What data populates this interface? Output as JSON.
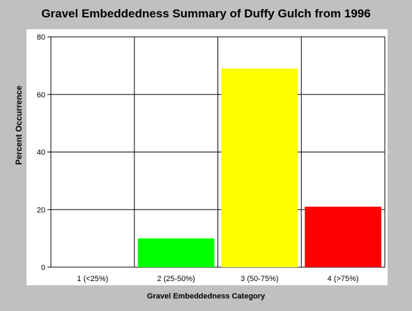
{
  "chart_data": {
    "type": "bar",
    "title": "Gravel Embeddedness Summary of Duffy Gulch from 1996",
    "xlabel": "Gravel Embeddedness Category",
    "ylabel": "Percent Occurrence",
    "categories": [
      "1 (<25%)",
      "2 (25-50%)",
      "3 (50-75%)",
      "4 (>75%)"
    ],
    "values": [
      0,
      10,
      69,
      21
    ],
    "bar_colors": [
      "#ff0000",
      "#00ff00",
      "#ffff00",
      "#ff0000"
    ],
    "ylim": [
      0,
      80
    ],
    "yticks": [
      0,
      20,
      40,
      60,
      80
    ],
    "grid": true,
    "legend": "none"
  }
}
